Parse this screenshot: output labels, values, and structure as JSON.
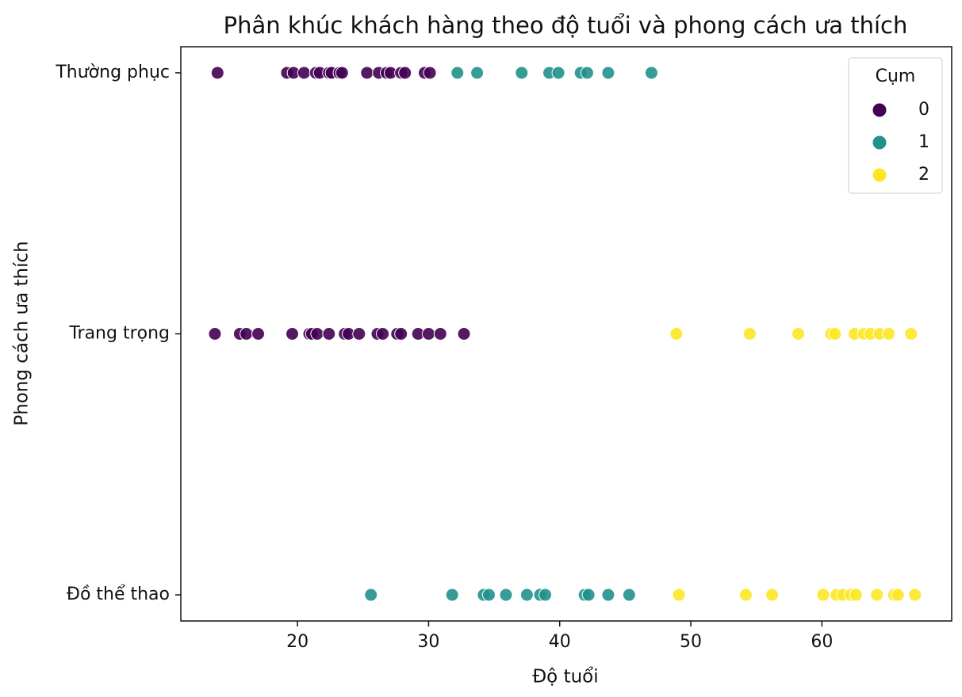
{
  "chart_data": {
    "type": "scatter",
    "title": "Phân khúc khách hàng theo độ tuổi và phong cách ưa thích",
    "x_label": "Độ tuổi",
    "y_label": "Phong cách ưa thích",
    "xlim": [
      11.1,
      69.9
    ],
    "xticks": [
      20,
      30,
      40,
      50,
      60
    ],
    "ylim": [
      -0.1,
      2.1
    ],
    "y_inverted": true,
    "yticks": [
      {
        "value": 0,
        "label": "Thường phục"
      },
      {
        "value": 1,
        "label": "Trang trọng"
      },
      {
        "value": 2,
        "label": "Đồ thể thao"
      }
    ],
    "grid": false,
    "legend_title": "Cụm",
    "legend_position": "upper right",
    "series": [
      {
        "name": "0",
        "color": "#440154",
        "x": [
          13.9,
          19.2,
          19.7,
          20.5,
          21.4,
          21.7,
          22.4,
          22.6,
          23.2,
          23.4,
          25.3,
          26.2,
          26.8,
          27.1,
          27.9,
          28.2,
          29.7,
          30.1,
          13.7,
          15.6,
          16.1,
          17.0,
          19.6,
          20.9,
          21.1,
          21.5,
          22.4,
          23.6,
          23.9,
          24.7,
          26.1,
          26.5,
          27.6,
          27.9,
          29.2,
          30.0,
          30.9,
          32.7
        ],
        "y": [
          0,
          0,
          0,
          0,
          0,
          0,
          0,
          0,
          0,
          0,
          0,
          0,
          0,
          0,
          0,
          0,
          0,
          0,
          1,
          1,
          1,
          1,
          1,
          1,
          1,
          1,
          1,
          1,
          1,
          1,
          1,
          1,
          1,
          1,
          1,
          1,
          1,
          1
        ]
      },
      {
        "name": "1",
        "color": "#21918c",
        "x": [
          32.2,
          33.7,
          37.1,
          39.2,
          39.9,
          41.6,
          42.1,
          43.7,
          47.0,
          25.6,
          31.8,
          34.2,
          34.6,
          35.9,
          37.5,
          38.5,
          38.9,
          41.9,
          42.2,
          43.7,
          45.3
        ],
        "y": [
          0,
          0,
          0,
          0,
          0,
          0,
          0,
          0,
          0,
          2,
          2,
          2,
          2,
          2,
          2,
          2,
          2,
          2,
          2,
          2,
          2
        ]
      },
      {
        "name": "2",
        "color": "#fde725",
        "x": [
          48.9,
          54.5,
          58.2,
          60.7,
          61.0,
          62.5,
          63.2,
          63.7,
          64.4,
          65.1,
          66.8,
          49.1,
          54.2,
          56.2,
          60.1,
          61.1,
          61.6,
          62.2,
          62.6,
          64.2,
          65.5,
          65.8,
          67.1
        ],
        "y": [
          1,
          1,
          1,
          1,
          1,
          1,
          1,
          1,
          1,
          1,
          1,
          2,
          2,
          2,
          2,
          2,
          2,
          2,
          2,
          2,
          2,
          2,
          2
        ]
      }
    ]
  }
}
